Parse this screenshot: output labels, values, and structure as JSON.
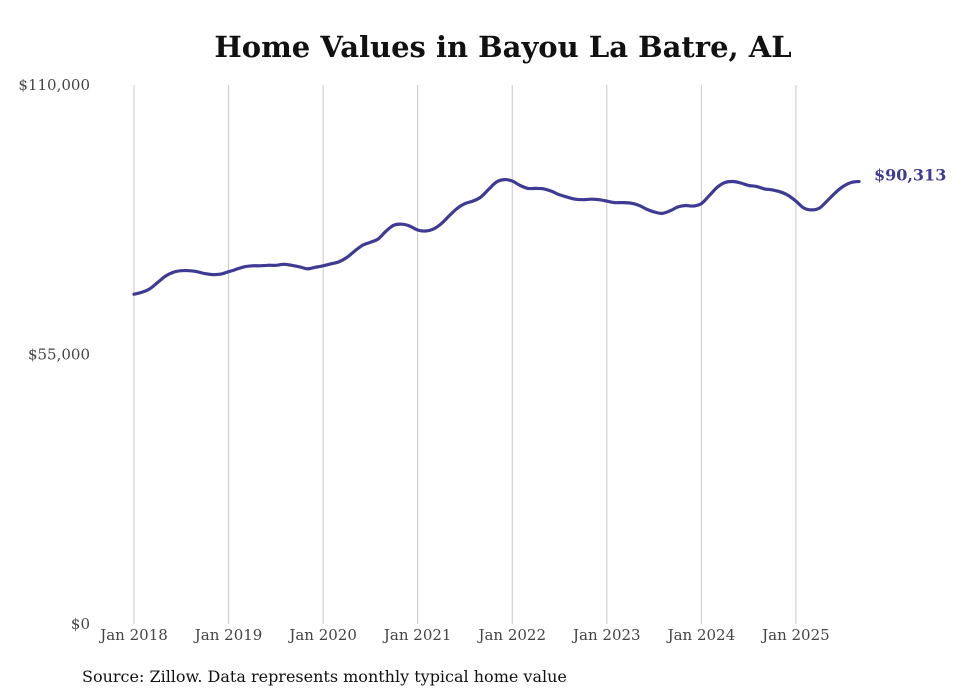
{
  "chart_data": {
    "type": "line",
    "title": "Home Values in Bayou La Batre, AL",
    "xlabel": "",
    "ylabel": "",
    "ylim": [
      0,
      110000
    ],
    "y_ticks": [
      {
        "value": 0,
        "label": "$0"
      },
      {
        "value": 55000,
        "label": "$55,000"
      },
      {
        "value": 110000,
        "label": "$110,000"
      }
    ],
    "x_ticks": [
      {
        "index": 0,
        "label": "Jan 2018"
      },
      {
        "index": 12,
        "label": "Jan 2019"
      },
      {
        "index": 24,
        "label": "Jan 2020"
      },
      {
        "index": 36,
        "label": "Jan 2021"
      },
      {
        "index": 48,
        "label": "Jan 2022"
      },
      {
        "index": 60,
        "label": "Jan 2023"
      },
      {
        "index": 72,
        "label": "Jan 2024"
      },
      {
        "index": 84,
        "label": "Jan 2025"
      }
    ],
    "grid": "vertical",
    "series": [
      {
        "name": "Typical home value",
        "color": "#3f3a93",
        "start": "Jan 2018",
        "frequency": "monthly",
        "values": [
          67300,
          67700,
          68400,
          69700,
          71000,
          71800,
          72100,
          72100,
          71900,
          71500,
          71300,
          71400,
          71900,
          72400,
          72900,
          73100,
          73100,
          73200,
          73200,
          73400,
          73200,
          72900,
          72500,
          72800,
          73100,
          73500,
          73900,
          74800,
          76100,
          77300,
          77900,
          78600,
          80200,
          81400,
          81600,
          81200,
          80400,
          80200,
          80600,
          81700,
          83300,
          84800,
          85800,
          86300,
          87100,
          88700,
          90200,
          90700,
          90400,
          89500,
          88900,
          88900,
          88800,
          88300,
          87600,
          87100,
          86700,
          86600,
          86700,
          86600,
          86300,
          86000,
          86000,
          85900,
          85500,
          84700,
          84100,
          83800,
          84300,
          85100,
          85400,
          85300,
          85800,
          87400,
          89100,
          90100,
          90300,
          90000,
          89500,
          89300,
          88800,
          88600,
          88200,
          87500,
          86300,
          84900,
          84500,
          84900,
          86400,
          88000,
          89300,
          90100,
          90313
        ],
        "end_label": "$90,313"
      }
    ]
  },
  "source_note": "Source: Zillow. Data represents monthly typical home value"
}
